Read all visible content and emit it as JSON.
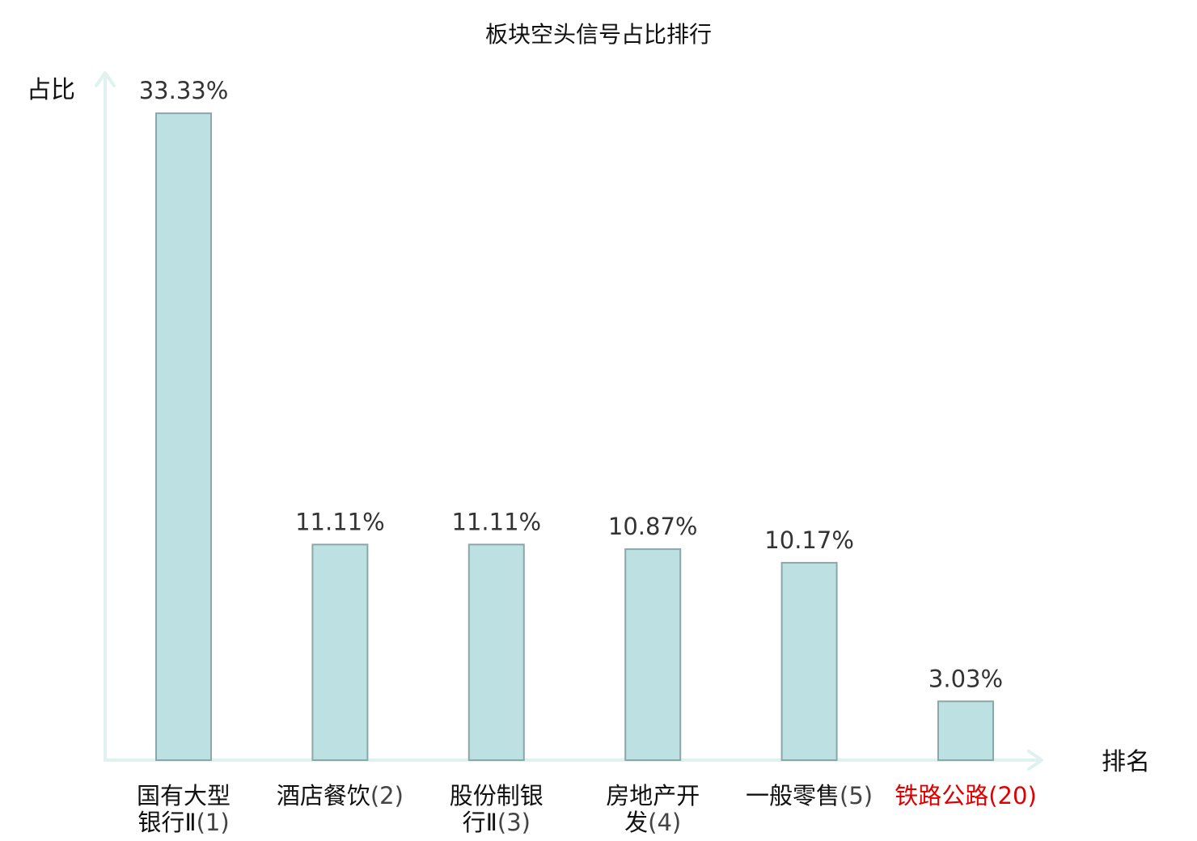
{
  "chart_data": {
    "type": "bar",
    "title": "板块空头信号占比排行",
    "ylabel": "占比",
    "xlabel": "排名",
    "ylim": [
      0,
      35.25
    ],
    "grid": false,
    "legend": "none",
    "categories": [
      {
        "lines": [
          "国有大型",
          "银行Ⅱ"
        ],
        "rank": "(1)",
        "highlight": false
      },
      {
        "lines": [
          "酒店餐饮"
        ],
        "rank": "(2)",
        "highlight": false
      },
      {
        "lines": [
          "股份制银",
          "行Ⅱ"
        ],
        "rank": "(3)",
        "highlight": false
      },
      {
        "lines": [
          "房地产开",
          "发"
        ],
        "rank": "(4)",
        "highlight": false
      },
      {
        "lines": [
          "一般零售"
        ],
        "rank": "(5)",
        "highlight": false
      },
      {
        "lines": [
          "铁路公路"
        ],
        "rank": "(20)",
        "highlight": true
      }
    ],
    "values": [
      33.33,
      11.11,
      11.11,
      10.87,
      10.17,
      3.03
    ],
    "value_labels": [
      "33.33%",
      "11.11%",
      "11.11%",
      "10.87%",
      "10.17%",
      "3.03%"
    ],
    "colors": {
      "bar_fill": "#bde0e3",
      "bar_stroke": "#8aa7a9",
      "axis": "#dff2ef",
      "highlight": "#e00000"
    }
  }
}
